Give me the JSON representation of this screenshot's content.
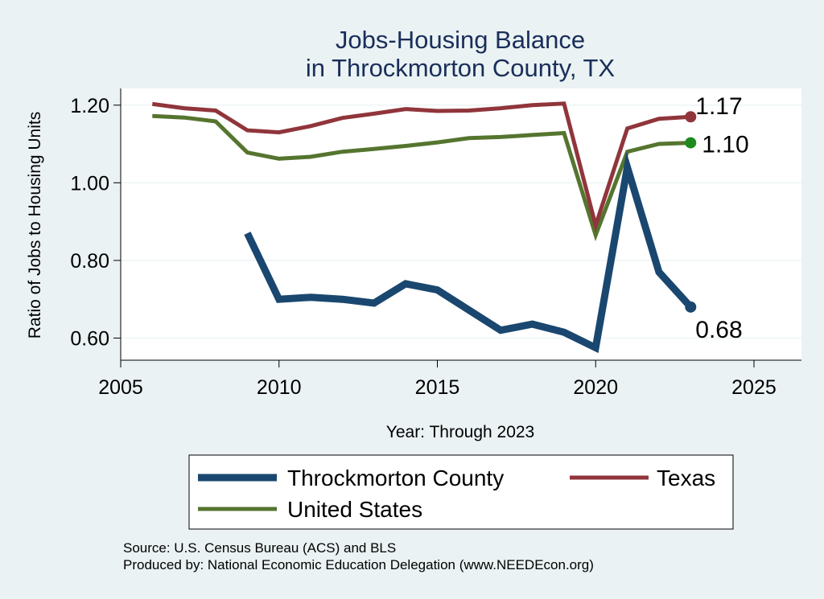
{
  "chart_data": {
    "type": "line",
    "title": [
      "Jobs-Housing Balance",
      "in Throckmorton County, TX"
    ],
    "xlabel": "Year: Through 2023",
    "ylabel": "Ratio of Jobs to Housing Units",
    "xlim": [
      2005,
      2026.5
    ],
    "ylim": [
      0.543,
      1.243
    ],
    "xticks": [
      2005,
      2010,
      2015,
      2020,
      2025
    ],
    "yticks": [
      0.6,
      0.8,
      1.0,
      1.2
    ],
    "yticklabels": [
      "0.60",
      "0.80",
      "1.00",
      "1.20"
    ],
    "grid": true,
    "series": [
      {
        "name": "Throckmorton County",
        "color": "#1a476f",
        "end_label": "0.68",
        "x": [
          2009,
          2010,
          2011,
          2012,
          2013,
          2014,
          2015,
          2016,
          2017,
          2018,
          2019,
          2020,
          2021,
          2022,
          2023
        ],
        "values": [
          0.87,
          0.7,
          0.705,
          0.7,
          0.69,
          0.74,
          0.724,
          0.672,
          0.62,
          0.636,
          0.615,
          0.575,
          1.04,
          0.77,
          0.68
        ]
      },
      {
        "name": "Texas",
        "color": "#90353b",
        "end_label": "1.17",
        "x": [
          2006,
          2007,
          2008,
          2009,
          2010,
          2011,
          2012,
          2013,
          2014,
          2015,
          2016,
          2017,
          2018,
          2019,
          2020,
          2021,
          2022,
          2023
        ],
        "values": [
          1.203,
          1.192,
          1.186,
          1.135,
          1.13,
          1.146,
          1.167,
          1.178,
          1.19,
          1.185,
          1.186,
          1.192,
          1.2,
          1.204,
          0.89,
          1.14,
          1.165,
          1.17
        ]
      },
      {
        "name": "United States",
        "color": "#55752f",
        "end_label": "1.10",
        "x": [
          2006,
          2007,
          2008,
          2009,
          2010,
          2011,
          2012,
          2013,
          2014,
          2015,
          2016,
          2017,
          2018,
          2019,
          2020,
          2021,
          2022,
          2023
        ],
        "values": [
          1.172,
          1.168,
          1.158,
          1.078,
          1.062,
          1.067,
          1.08,
          1.087,
          1.095,
          1.104,
          1.115,
          1.118,
          1.123,
          1.128,
          0.865,
          1.08,
          1.1,
          1.103
        ]
      }
    ],
    "legend": {
      "placement": "bottom",
      "items": [
        "Throckmorton County",
        "Texas",
        "United States"
      ]
    },
    "notes": [
      "Source: U.S. Census Bureau (ACS) and BLS",
      "Produced by: National Economic Education Delegation (www.NEEDEcon.org)"
    ]
  }
}
